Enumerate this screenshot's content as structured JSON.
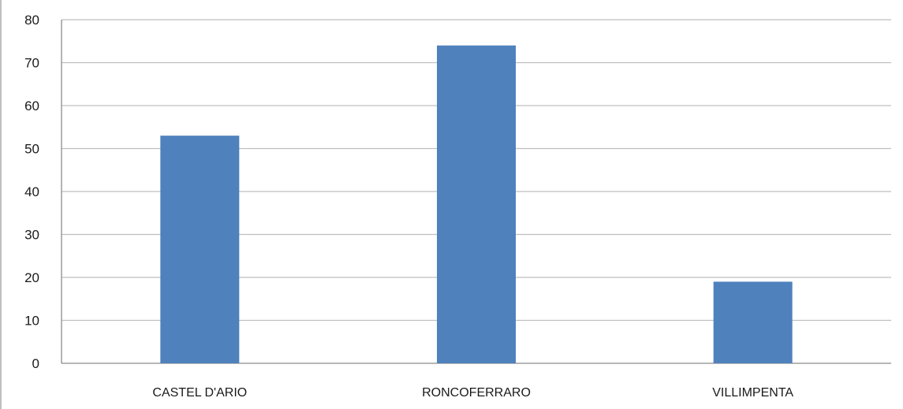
{
  "chart_data": {
    "type": "bar",
    "categories": [
      "CASTEL D'ARIO",
      "RONCOFERRARO",
      "VILLIMPENTA"
    ],
    "values": [
      53,
      74,
      19
    ],
    "title": "",
    "xlabel": "",
    "ylabel": "",
    "ylim": [
      0,
      80
    ],
    "yticks": [
      0,
      10,
      20,
      30,
      40,
      50,
      60,
      70,
      80
    ],
    "grid": true,
    "legend": "none",
    "colors": {
      "bar": "#4f81bd",
      "grid": "#bfbfbf",
      "axis": "#8c8c8c"
    }
  }
}
